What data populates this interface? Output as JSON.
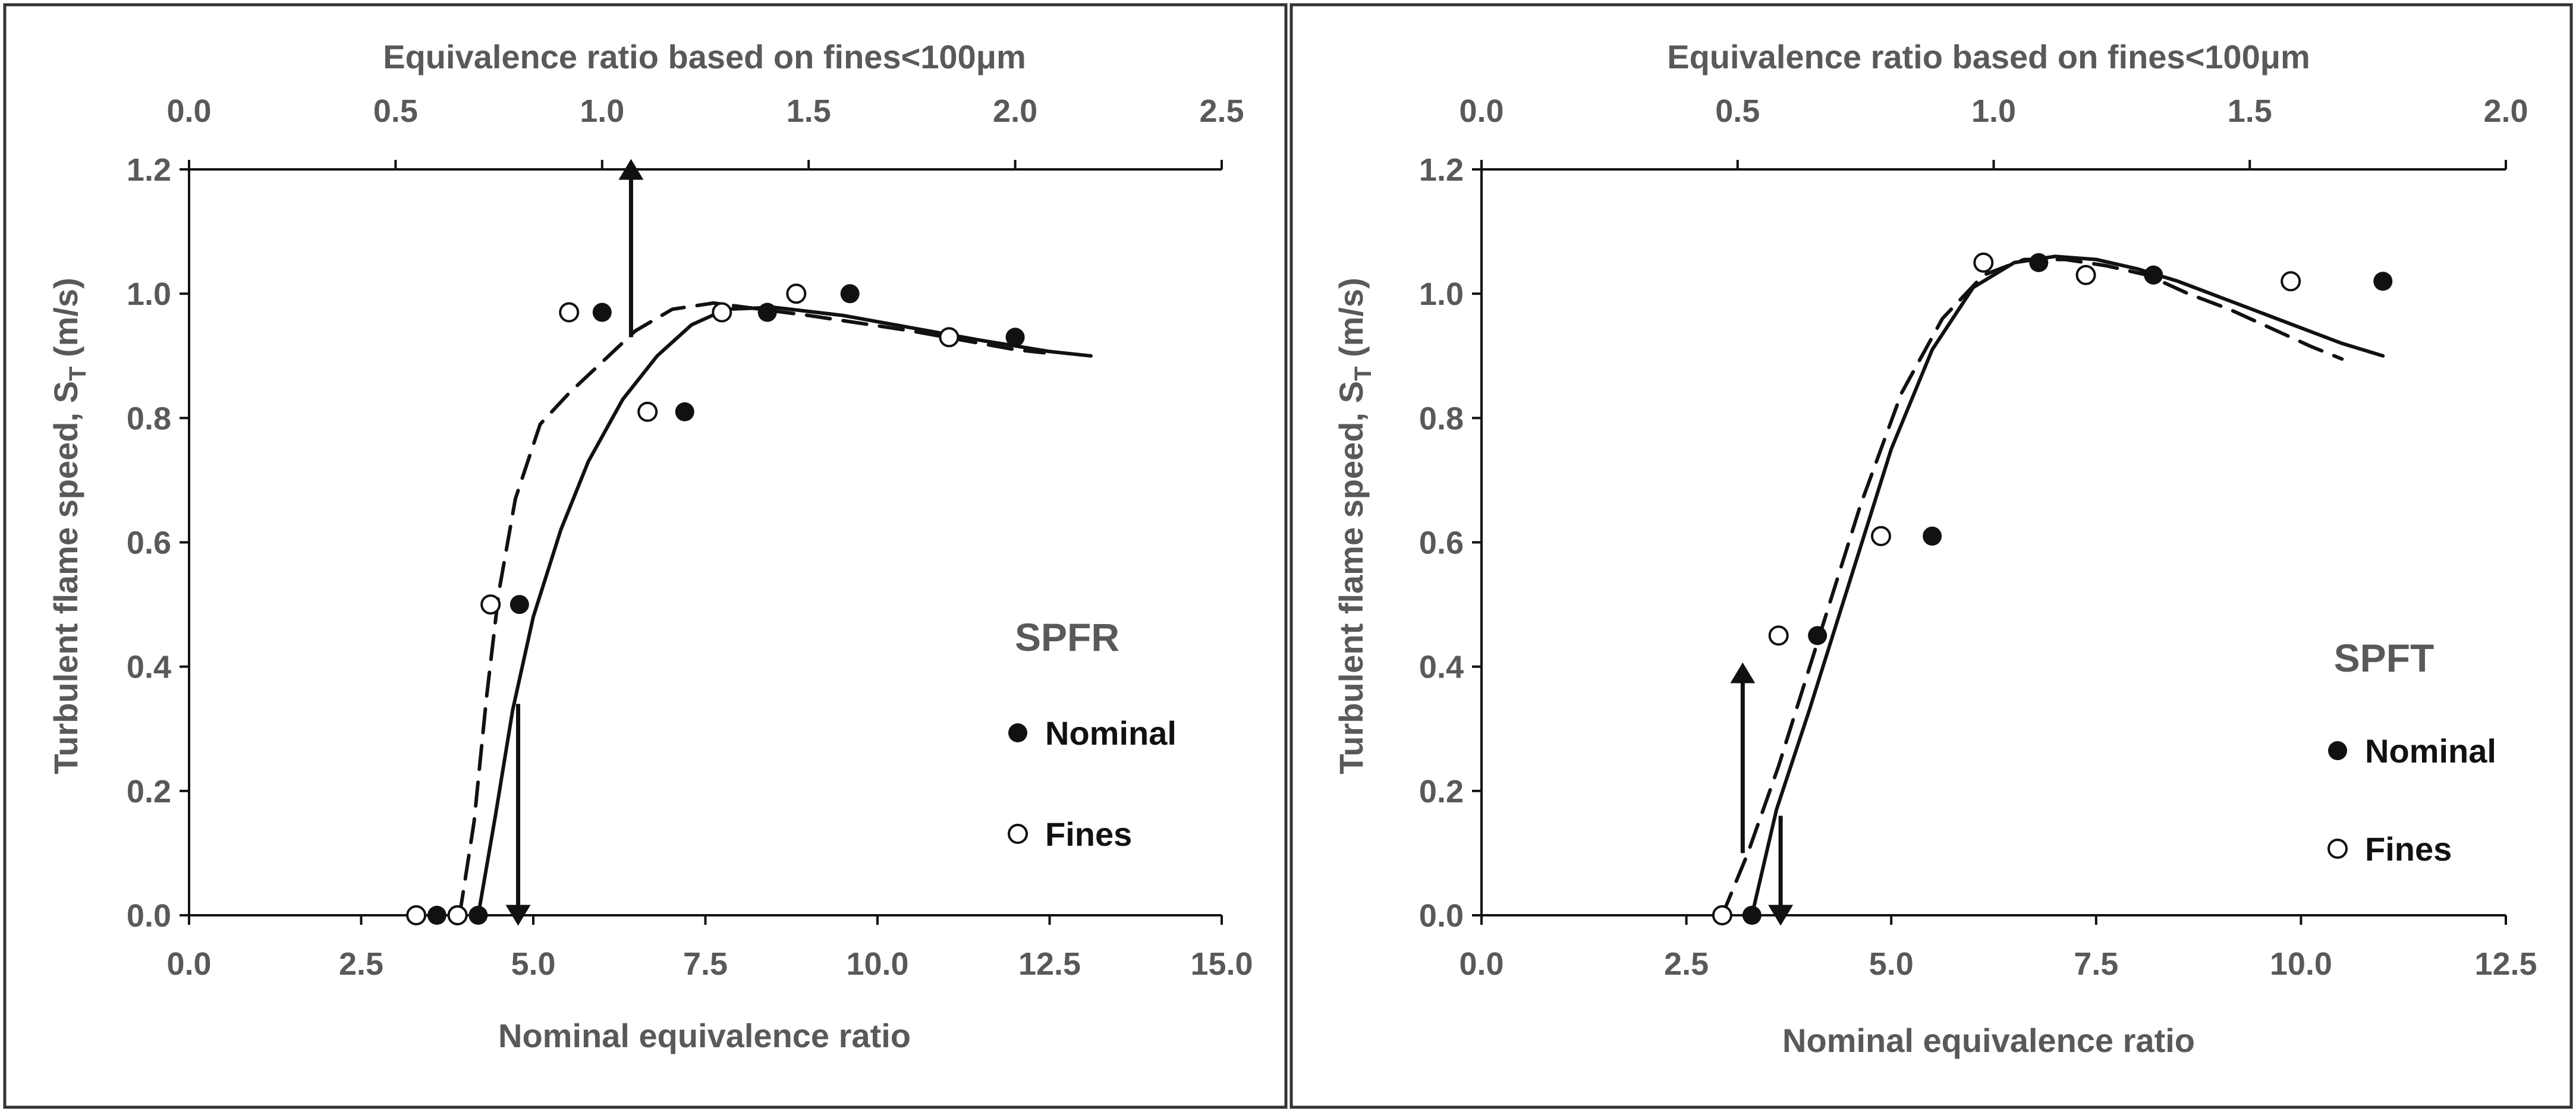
{
  "chart_data": [
    {
      "type": "scatter",
      "panel_label": "SPFR",
      "xlabel": "Nominal equivalence ratio",
      "x2label": "Equivalence ratio based on fines<100μm",
      "ylabel": "Turbulent flame speed, S",
      "ylabel_sub": "T",
      "ylabel_unit": " (m/s)",
      "xlim": [
        0,
        15
      ],
      "x2lim": [
        0,
        2.5
      ],
      "ylim": [
        0,
        1.2
      ],
      "xticks": [
        "0.0",
        "2.5",
        "5.0",
        "7.5",
        "10.0",
        "12.5",
        "15.0"
      ],
      "x2ticks": [
        "0.0",
        "0.5",
        "1.0",
        "1.5",
        "2.0",
        "2.5"
      ],
      "yticks": [
        "0.0",
        "0.2",
        "0.4",
        "0.6",
        "0.8",
        "1.0",
        "1.2"
      ],
      "legend": [
        "Nominal",
        "Fines"
      ],
      "series": [
        {
          "name": "Nominal",
          "marker": "filled-circle",
          "axis": "bottom",
          "x": [
            3.6,
            4.2,
            4.8,
            6.0,
            7.2,
            8.4,
            9.6,
            12.0
          ],
          "y": [
            0.0,
            0.0,
            0.5,
            0.97,
            0.81,
            0.97,
            1.0,
            0.93
          ]
        },
        {
          "name": "Fines",
          "marker": "open-circle",
          "axis": "top",
          "x": [
            0.55,
            0.65,
            0.73,
            0.92,
            1.11,
            1.29,
            1.47,
            1.84
          ],
          "y": [
            0.0,
            0.0,
            0.5,
            0.97,
            0.81,
            0.97,
            1.0,
            0.93
          ]
        },
        {
          "name": "Nominal fit",
          "style": "solid",
          "axis": "bottom",
          "x": [
            4.2,
            4.45,
            4.7,
            5.0,
            5.4,
            5.8,
            6.3,
            6.8,
            7.3,
            7.8,
            8.5,
            9.5,
            10.5,
            11.5,
            12.5,
            13.1
          ],
          "y": [
            0.0,
            0.16,
            0.33,
            0.48,
            0.62,
            0.73,
            0.83,
            0.9,
            0.95,
            0.975,
            0.978,
            0.965,
            0.945,
            0.925,
            0.907,
            0.9
          ]
        },
        {
          "name": "Fines fit",
          "style": "dashed",
          "axis": "top",
          "x": [
            0.655,
            0.69,
            0.72,
            0.75,
            0.79,
            0.85,
            0.92,
            1.0,
            1.08,
            1.17,
            1.27,
            1.35,
            1.5,
            1.75,
            2.0,
            2.07
          ],
          "y": [
            0.0,
            0.15,
            0.35,
            0.52,
            0.67,
            0.79,
            0.84,
            0.89,
            0.94,
            0.975,
            0.985,
            0.978,
            0.965,
            0.94,
            0.91,
            0.905
          ]
        }
      ],
      "arrows": [
        {
          "axis": "top",
          "x": 1.07,
          "y_from": 0.93,
          "y_to": 1.2
        },
        {
          "axis": "bottom",
          "x": 4.78,
          "y_from": 0.34,
          "y_to": 0.0
        }
      ]
    },
    {
      "type": "scatter",
      "panel_label": "SPFT",
      "xlabel": "Nominal equivalence ratio",
      "x2label": "Equivalence ratio based on fines<100μm",
      "ylabel": "Turbulent flame speed, S",
      "ylabel_sub": "T",
      "ylabel_unit": " (m/s)",
      "xlim": [
        0,
        12.5
      ],
      "x2lim": [
        0,
        2.0
      ],
      "ylim": [
        0,
        1.2
      ],
      "xticks": [
        "0.0",
        "2.5",
        "5.0",
        "7.5",
        "10.0",
        "12.5"
      ],
      "x2ticks": [
        "0.0",
        "0.5",
        "1.0",
        "1.5",
        "2.0"
      ],
      "yticks": [
        "0.0",
        "0.2",
        "0.4",
        "0.6",
        "0.8",
        "1.0",
        "1.2"
      ],
      "legend": [
        "Nominal",
        "Fines"
      ],
      "series": [
        {
          "name": "Nominal",
          "marker": "filled-circle",
          "axis": "bottom",
          "x": [
            3.3,
            4.1,
            5.5,
            6.8,
            8.2,
            11.0
          ],
          "y": [
            0.0,
            0.45,
            0.61,
            1.05,
            1.03,
            1.02
          ],
          "fit_label": "Nominal"
        },
        {
          "name": "Fines",
          "marker": "open-circle",
          "axis": "top",
          "x": [
            0.47,
            0.58,
            0.78,
            0.98,
            1.18,
            1.58
          ],
          "y": [
            0.0,
            0.45,
            0.61,
            1.05,
            1.03,
            1.02
          ]
        },
        {
          "name": "Nominal fit",
          "style": "solid",
          "axis": "bottom",
          "x": [
            3.3,
            3.6,
            4.0,
            4.5,
            5.0,
            5.5,
            6.0,
            6.5,
            7.0,
            7.5,
            8.0,
            8.5,
            9.0,
            9.5,
            10.0,
            10.5,
            11.0
          ],
          "y": [
            0.0,
            0.17,
            0.33,
            0.54,
            0.75,
            0.91,
            1.01,
            1.05,
            1.06,
            1.055,
            1.04,
            1.02,
            0.995,
            0.97,
            0.945,
            0.92,
            0.9
          ]
        },
        {
          "name": "Fines fit",
          "style": "dashed",
          "axis": "top",
          "x": [
            0.47,
            0.52,
            0.58,
            0.66,
            0.74,
            0.82,
            0.9,
            0.98,
            1.06,
            1.14,
            1.22,
            1.3,
            1.38,
            1.46,
            1.54,
            1.62,
            1.68
          ],
          "y": [
            0.0,
            0.1,
            0.24,
            0.45,
            0.66,
            0.84,
            0.96,
            1.03,
            1.055,
            1.055,
            1.045,
            1.03,
            1.0,
            0.975,
            0.945,
            0.915,
            0.895
          ]
        }
      ],
      "arrows": [
        {
          "axis": "top",
          "x": 0.51,
          "y_from": 0.1,
          "y_to": 0.39
        },
        {
          "axis": "bottom",
          "x": 3.65,
          "y_from": 0.16,
          "y_to": 0.0
        }
      ]
    }
  ]
}
